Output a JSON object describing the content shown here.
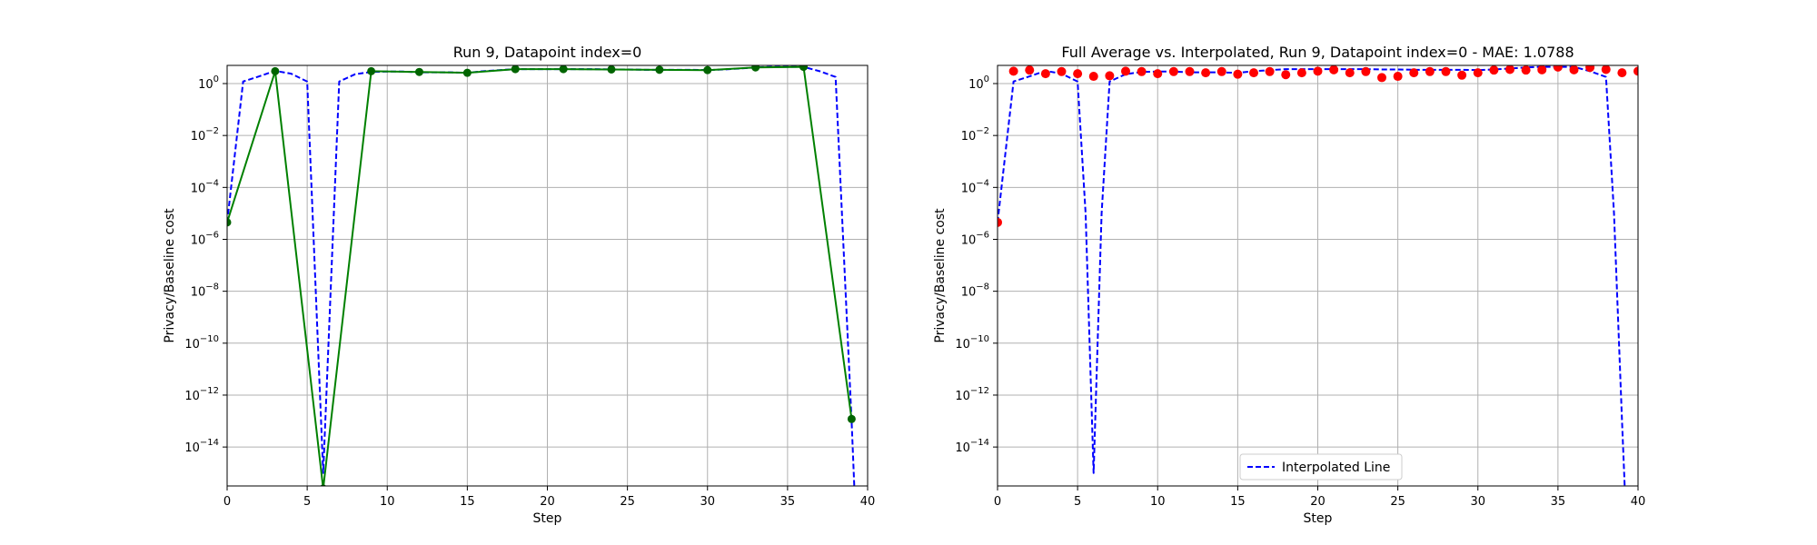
{
  "chart_data": [
    {
      "type": "line",
      "title": "Run 9, Datapoint index=0",
      "xlabel": "Step",
      "ylabel": "Privacy/Baseline cost",
      "xlim": [
        0,
        40
      ],
      "yscale": "log",
      "ylim_exp": [
        -15.5,
        0.7
      ],
      "grid": true,
      "xticks": [
        "0",
        "5",
        "10",
        "15",
        "20",
        "25",
        "30",
        "35",
        "40"
      ],
      "yticks": [
        {
          "base": "10",
          "exp": "0",
          "value": 0
        },
        {
          "base": "10",
          "exp": "−2",
          "value": -2
        },
        {
          "base": "10",
          "exp": "−4",
          "value": -4
        },
        {
          "base": "10",
          "exp": "−6",
          "value": -6
        },
        {
          "base": "10",
          "exp": "−8",
          "value": -8
        },
        {
          "base": "10",
          "exp": "−10",
          "value": -10
        },
        {
          "base": "10",
          "exp": "−12",
          "value": -12
        },
        {
          "base": "10",
          "exp": "−14",
          "value": -14
        }
      ],
      "series": [
        {
          "style": "dashed",
          "color": "#0000ff",
          "x": [
            0,
            1,
            2,
            3,
            4,
            5,
            6,
            7,
            8,
            9,
            10,
            11,
            12,
            13,
            14,
            15,
            16,
            17,
            18,
            19,
            20,
            21,
            22,
            23,
            24,
            25,
            26,
            27,
            28,
            29,
            30,
            31,
            32,
            33,
            34,
            35,
            36,
            37,
            38,
            39,
            39.2
          ],
          "y": [
            4.5e-06,
            1.2,
            1.9,
            3.1,
            2.4,
            1.2,
            1e-15,
            1.2,
            2.3,
            2.8,
            2.9,
            2.9,
            2.7,
            2.7,
            2.7,
            2.6,
            3.0,
            3.3,
            3.6,
            3.6,
            3.6,
            3.6,
            3.6,
            3.6,
            3.5,
            3.5,
            3.4,
            3.4,
            3.4,
            3.4,
            3.3,
            3.5,
            3.8,
            4.2,
            4.4,
            4.4,
            4.4,
            3.0,
            1.8,
            1e-13,
            1e-16
          ]
        },
        {
          "style": "solid",
          "color": "#008000",
          "marker_color": "#006400",
          "x": [
            0,
            3,
            6,
            9,
            12,
            15,
            18,
            21,
            24,
            27,
            30,
            33,
            36,
            39
          ],
          "y": [
            4.5e-06,
            3.0,
            2.5e-16,
            3.0,
            2.8,
            2.6,
            3.6,
            3.6,
            3.5,
            3.4,
            3.3,
            4.2,
            4.4,
            1.2e-13
          ]
        }
      ]
    },
    {
      "type": "line",
      "title": "Full Average vs. Interpolated, Run 9, Datapoint index=0 - MAE: 1.0788",
      "xlabel": "Step",
      "ylabel": "Privacy/Baseline cost",
      "xlim": [
        0,
        40
      ],
      "yscale": "log",
      "ylim_exp": [
        -15.5,
        0.7
      ],
      "grid": true,
      "xticks": [
        "0",
        "5",
        "10",
        "15",
        "20",
        "25",
        "30",
        "35",
        "40"
      ],
      "yticks": [
        {
          "base": "10",
          "exp": "0",
          "value": 0
        },
        {
          "base": "10",
          "exp": "−2",
          "value": -2
        },
        {
          "base": "10",
          "exp": "−4",
          "value": -4
        },
        {
          "base": "10",
          "exp": "−6",
          "value": -6
        },
        {
          "base": "10",
          "exp": "−8",
          "value": -8
        },
        {
          "base": "10",
          "exp": "−10",
          "value": -10
        },
        {
          "base": "10",
          "exp": "−12",
          "value": -12
        },
        {
          "base": "10",
          "exp": "−14",
          "value": -14
        }
      ],
      "legend": {
        "placement": "lower-center",
        "entries": [
          "Interpolated Line"
        ]
      },
      "series": [
        {
          "name": "Interpolated Line",
          "style": "dashed",
          "color": "#0000ff",
          "x": [
            0,
            1,
            2,
            3,
            4,
            5,
            5.5,
            6,
            6.5,
            7,
            8,
            9,
            10,
            11,
            12,
            13,
            14,
            15,
            16,
            17,
            18,
            19,
            20,
            21,
            22,
            23,
            24,
            25,
            26,
            27,
            28,
            29,
            30,
            31,
            32,
            33,
            34,
            35,
            36,
            37,
            38,
            38.5,
            39,
            39.2
          ],
          "y": [
            4.5e-06,
            1.2,
            1.9,
            3.1,
            2.4,
            1.2,
            1e-05,
            1e-15,
            1e-05,
            1.2,
            2.3,
            2.8,
            2.9,
            2.9,
            2.7,
            2.7,
            2.7,
            2.6,
            3.0,
            3.3,
            3.6,
            3.6,
            3.6,
            3.6,
            3.6,
            3.6,
            3.5,
            3.5,
            3.4,
            3.4,
            3.4,
            3.4,
            3.3,
            3.5,
            3.8,
            4.2,
            4.4,
            4.4,
            4.4,
            3.0,
            1.8,
            1e-05,
            1e-13,
            1e-16
          ]
        },
        {
          "style": "markers",
          "color": "#ff0000",
          "x": [
            0,
            1,
            2,
            3,
            4,
            5,
            6,
            7,
            8,
            9,
            10,
            11,
            12,
            13,
            14,
            15,
            16,
            17,
            18,
            19,
            20,
            21,
            22,
            23,
            24,
            25,
            26,
            27,
            28,
            29,
            30,
            31,
            32,
            33,
            34,
            35,
            36,
            37,
            38,
            39,
            40
          ],
          "y": [
            4.5e-06,
            3.0,
            3.3,
            2.4,
            2.9,
            2.4,
            1.9,
            2.0,
            3.0,
            2.9,
            2.4,
            2.9,
            2.9,
            2.6,
            2.9,
            2.3,
            2.6,
            2.9,
            2.2,
            2.6,
            3.0,
            3.4,
            2.6,
            2.9,
            1.7,
            1.9,
            2.6,
            2.9,
            2.9,
            2.1,
            2.6,
            3.3,
            3.5,
            3.3,
            3.4,
            4.3,
            3.4,
            4.2,
            3.5,
            2.6,
            3.0
          ]
        }
      ]
    }
  ]
}
